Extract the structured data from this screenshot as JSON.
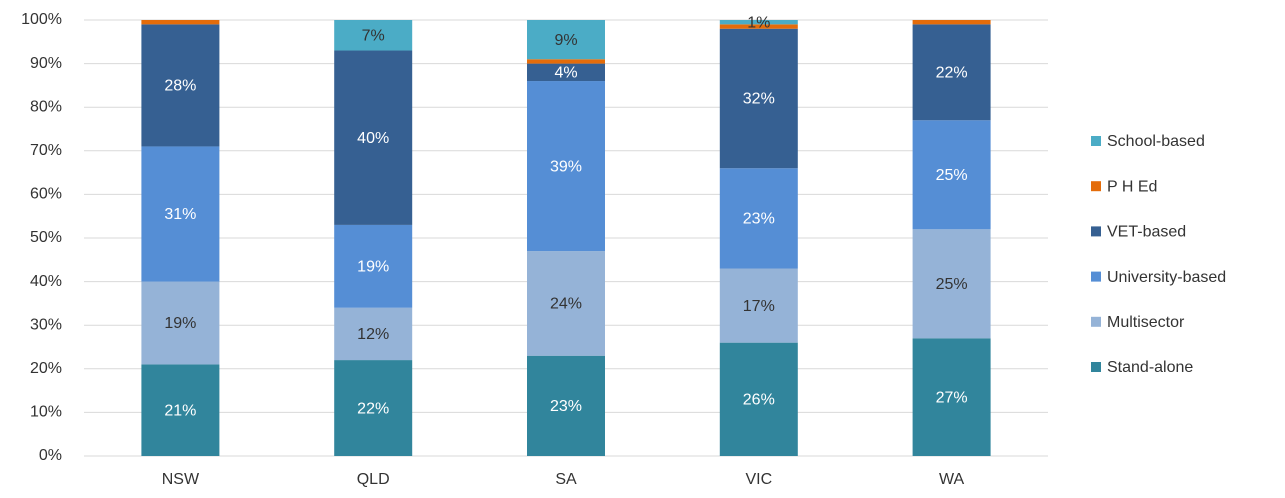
{
  "chart_data": {
    "type": "stacked_bar",
    "categories": [
      "NSW",
      "QLD",
      "SA",
      "VIC",
      "WA"
    ],
    "series": [
      {
        "name": "Stand-alone",
        "color": "#31859c",
        "label_color": "#ffffff",
        "values": [
          21,
          22,
          23,
          26,
          27
        ],
        "value_labels": [
          "21%",
          "22%",
          "23%",
          "26%",
          "27%"
        ]
      },
      {
        "name": "Multisector",
        "color": "#95b3d7",
        "label_color": "#333333",
        "values": [
          19,
          12,
          24,
          17,
          25
        ],
        "value_labels": [
          "19%",
          "12%",
          "24%",
          "17%",
          "25%"
        ]
      },
      {
        "name": "University-based",
        "color": "#558ed5",
        "label_color": "#ffffff",
        "values": [
          31,
          19,
          39,
          23,
          25
        ],
        "value_labels": [
          "31%",
          "19%",
          "39%",
          "23%",
          "25%"
        ]
      },
      {
        "name": "VET-based",
        "color": "#366092",
        "label_color": "#ffffff",
        "values": [
          28,
          40,
          4,
          32,
          22
        ],
        "value_labels": [
          "28%",
          "40%",
          "4%",
          "32%",
          "22%"
        ]
      },
      {
        "name": "P H Ed",
        "color": "#e46c0a",
        "label_color": "#333333",
        "values": [
          1,
          0,
          1,
          1,
          1
        ],
        "value_labels": [
          null,
          null,
          null,
          null,
          null
        ]
      },
      {
        "name": "School-based",
        "color": "#4bacc6",
        "label_color": "#333333",
        "values": [
          0,
          7,
          9,
          1,
          0
        ],
        "value_labels": [
          null,
          "7%",
          "9%",
          "1%",
          null
        ]
      }
    ],
    "ylim": [
      0,
      100
    ],
    "yticks": [
      {
        "value": 0,
        "label": "0%"
      },
      {
        "value": 10,
        "label": "10%"
      },
      {
        "value": 20,
        "label": "20%"
      },
      {
        "value": 30,
        "label": "30%"
      },
      {
        "value": 40,
        "label": "40%"
      },
      {
        "value": 50,
        "label": "50%"
      },
      {
        "value": 60,
        "label": "60%"
      },
      {
        "value": 70,
        "label": "70%"
      },
      {
        "value": 80,
        "label": "80%"
      },
      {
        "value": 90,
        "label": "90%"
      },
      {
        "value": 100,
        "label": "100%"
      }
    ],
    "grid": true,
    "legend": "right"
  }
}
